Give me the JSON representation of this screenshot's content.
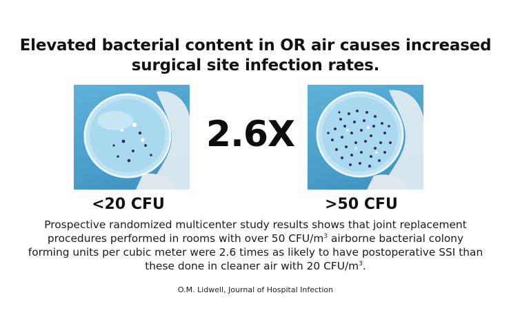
{
  "title": {
    "line1": "Elevated bacterial content in OR air causes increased",
    "line2": "surgical site infection rates."
  },
  "comparison": {
    "multiplier": "2.6X",
    "left_label": "<20 CFU",
    "right_label": ">50 CFU"
  },
  "description": {
    "part1": "Prospective randomized multicenter study results shows that joint replacement procedures performed in rooms with over 50 CFU/m",
    "sup1": "3",
    "part2": " airborne bacterial colony forming units per cubic meter were 2.6 times as likely to have postoperative SSI than these done in cleaner air with 20 CFU/m",
    "sup2": "3",
    "part3": "."
  },
  "citation": "O.M. Lidwell, Journal of Hospital Infection",
  "colors": {
    "background": "#ffffff",
    "photo_blue": "#4aa0cc",
    "agar": "#a9d9ee",
    "colony": "#3a2a6a"
  },
  "icons": {
    "left_image": "petri-dish-few-colonies",
    "right_image": "petri-dish-many-colonies"
  }
}
